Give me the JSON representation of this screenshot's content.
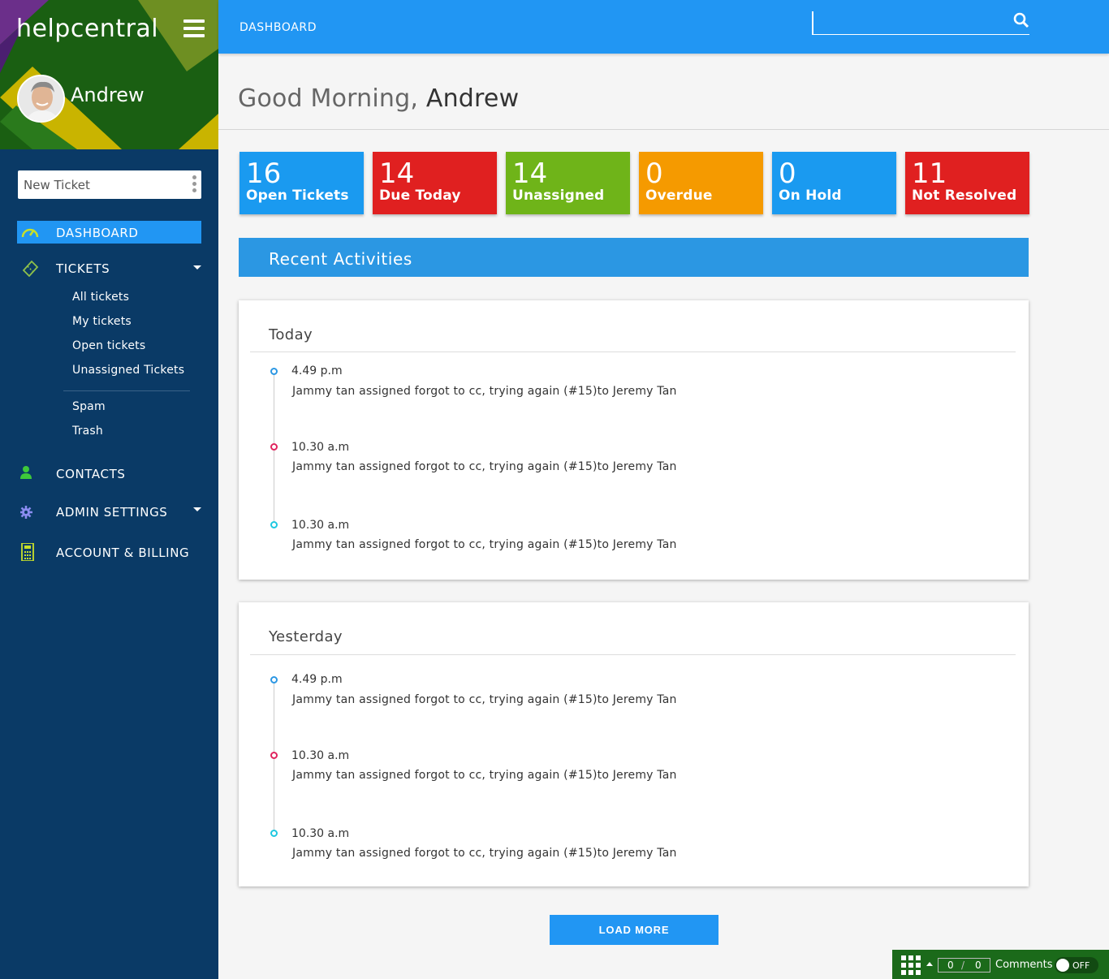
{
  "app": {
    "brand": "helpcentral"
  },
  "user": {
    "name": "Andrew"
  },
  "sidebar": {
    "new_ticket_placeholder": "New Ticket",
    "items": [
      {
        "label": "DASHBOARD",
        "icon": "speedometer-icon",
        "active": true
      },
      {
        "label": "TICKETS",
        "icon": "ticket-icon",
        "expanded": true
      },
      {
        "label": "CONTACTS",
        "icon": "user-icon"
      },
      {
        "label": "ADMIN SETTINGS",
        "icon": "gear-icon"
      },
      {
        "label": "ACCOUNT & BILLING",
        "icon": "calculator-icon"
      }
    ],
    "ticket_subitems": [
      "All tickets",
      "My tickets",
      "Open tickets",
      "Unassigned Tickets",
      "Spam",
      "Trash"
    ]
  },
  "topbar": {
    "title": "DASHBOARD",
    "search_value": ""
  },
  "greeting": {
    "prefix": "Good Morning,",
    "name": "Andrew"
  },
  "stats": [
    {
      "value": "16",
      "label": "Open Tickets",
      "color": "#1a9af0"
    },
    {
      "value": "14",
      "label": "Due Today",
      "color": "#e02020"
    },
    {
      "value": "14",
      "label": "Unassigned",
      "color": "#6fb419"
    },
    {
      "value": "0",
      "label": "Overdue",
      "color": "#f59a00"
    },
    {
      "value": "0",
      "label": "On Hold",
      "color": "#1a9af0"
    },
    {
      "value": "11",
      "label": "Not Resolved",
      "color": "#e02020"
    }
  ],
  "recent": {
    "title": "Recent Activities",
    "groups": [
      {
        "title": "Today",
        "entries": [
          {
            "time": "4.49 p.m",
            "text": "Jammy tan assigned forgot to cc, trying again (#15)to Jeremy Tan",
            "dot_color": "#2b97e3"
          },
          {
            "time": "10.30 a.m",
            "text": "Jammy tan assigned forgot to cc, trying again (#15)to Jeremy Tan",
            "dot_color": "#e0245e"
          },
          {
            "time": "10.30 a.m",
            "text": "Jammy tan assigned forgot to cc, trying again (#15)to Jeremy Tan",
            "dot_color": "#1ec8e0"
          }
        ]
      },
      {
        "title": "Yesterday",
        "entries": [
          {
            "time": "4.49 p.m",
            "text": "Jammy tan assigned forgot to cc, trying again (#15)to Jeremy Tan",
            "dot_color": "#2b97e3"
          },
          {
            "time": "10.30 a.m",
            "text": "Jammy tan assigned forgot to cc, trying again (#15)to Jeremy Tan",
            "dot_color": "#e0245e"
          },
          {
            "time": "10.30 a.m",
            "text": "Jammy tan assigned forgot to cc, trying again (#15)to Jeremy Tan",
            "dot_color": "#1ec8e0"
          }
        ]
      }
    ],
    "load_more": "LOAD MORE"
  },
  "widget": {
    "count_a": "0",
    "separator": "/",
    "count_b": "0",
    "label": "Comments",
    "toggle": "OFF"
  },
  "colors": {
    "sidebar": "#0a3a66",
    "primary": "#2196f3",
    "header_green": "#1b6a1a"
  }
}
